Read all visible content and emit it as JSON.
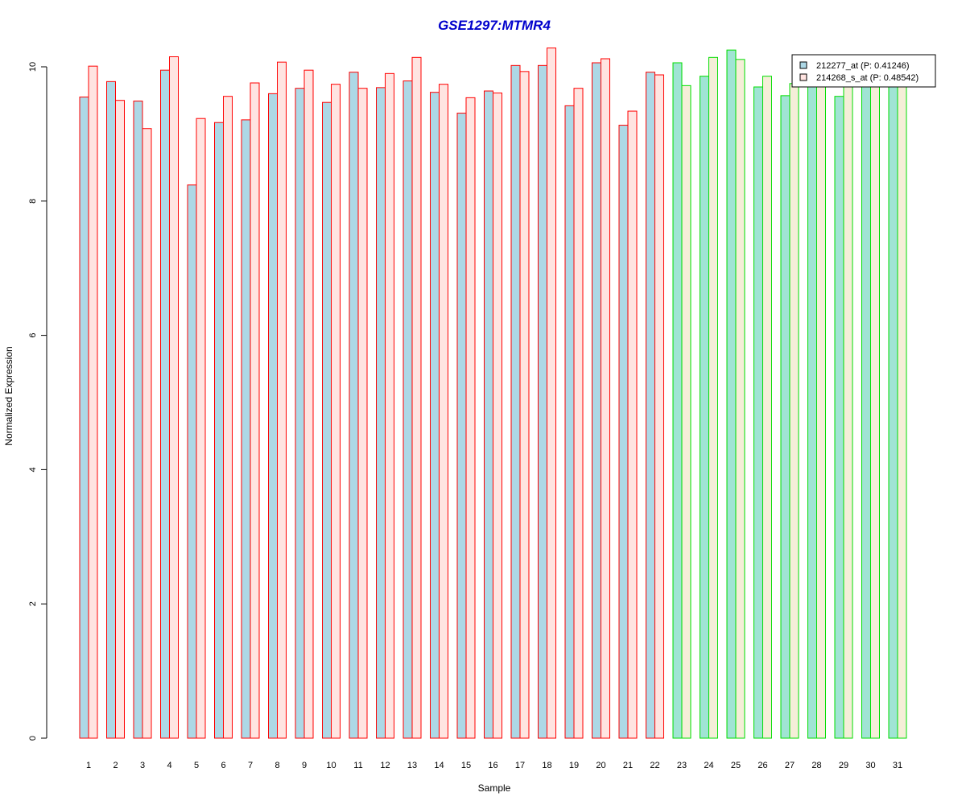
{
  "chart_data": {
    "type": "bar",
    "title": "GSE1297:MTMR4",
    "xlabel": "Sample",
    "ylabel": "Normalized Expression",
    "ylim": [
      0,
      10
    ],
    "yticks": [
      0,
      2,
      4,
      6,
      8,
      10
    ],
    "grid": false,
    "legend_position": "top-right",
    "categories": [
      "1",
      "2",
      "3",
      "4",
      "5",
      "6",
      "7",
      "8",
      "9",
      "10",
      "11",
      "12",
      "13",
      "14",
      "15",
      "16",
      "17",
      "18",
      "19",
      "20",
      "21",
      "22",
      "23",
      "24",
      "25",
      "26",
      "27",
      "28",
      "29",
      "30",
      "31"
    ],
    "series": [
      {
        "name": "212277_at (P: 0.41246)",
        "values": [
          9.55,
          9.78,
          9.49,
          9.95,
          8.24,
          9.17,
          9.21,
          9.6,
          9.68,
          9.47,
          9.92,
          9.69,
          9.79,
          9.62,
          9.31,
          9.64,
          10.02,
          10.02,
          9.42,
          10.06,
          9.13,
          9.92,
          10.06,
          9.86,
          10.25,
          9.7,
          9.57,
          9.8,
          9.56,
          9.8,
          9.8
        ]
      },
      {
        "name": "214268_s_at (P: 0.48542)",
        "values": [
          10.01,
          9.5,
          9.08,
          10.15,
          9.23,
          9.56,
          9.76,
          10.07,
          9.95,
          9.74,
          9.68,
          9.9,
          10.14,
          9.74,
          9.54,
          9.61,
          9.93,
          10.28,
          9.68,
          10.12,
          9.34,
          9.88,
          9.72,
          10.14,
          10.11,
          9.86,
          9.75,
          9.8,
          9.75,
          9.8,
          9.8
        ]
      }
    ],
    "group_split_after": 22
  },
  "colors": {
    "title": "#0000cc",
    "series1_fill": "#add8e6",
    "series2_fill": "#ffe4e1",
    "group1_border": "#ff0000",
    "group2_border": "#00dd00",
    "group2_series1_fill": "#a0e4d4",
    "group2_series2_fill": "#f5eed8",
    "axis": "#000000"
  }
}
